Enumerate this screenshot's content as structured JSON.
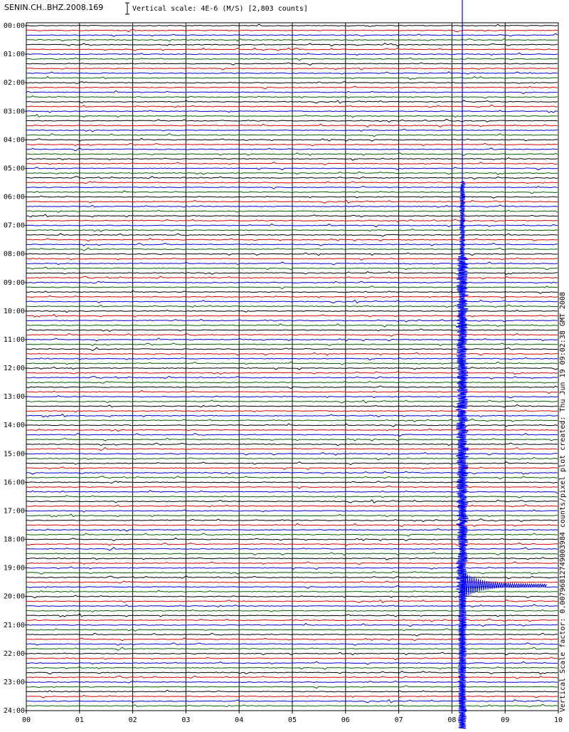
{
  "header": {
    "station": "SENIN.CH..BHZ.2008.169",
    "scale": "Vertical scale: 4E-6 (M/S) [2,803 counts]"
  },
  "side_text": "Vertical Scale factor: 0.00796812749003984 counts/pixel plot created: Thu Jun 19 09:02:38 GMT 2008",
  "hour_labels": [
    "00:00",
    "01:00",
    "02:00",
    "03:00",
    "04:00",
    "05:00",
    "06:00",
    "07:00",
    "08:00",
    "09:00",
    "10:00",
    "11:00",
    "12:00",
    "13:00",
    "14:00",
    "15:00",
    "16:00",
    "17:00",
    "18:00",
    "19:00",
    "20:00",
    "21:00",
    "22:00",
    "23:00",
    "24:00"
  ],
  "minute_labels": [
    "00",
    "01",
    "02",
    "03",
    "04",
    "05",
    "06",
    "07",
    "08",
    "09",
    "10"
  ]
}
